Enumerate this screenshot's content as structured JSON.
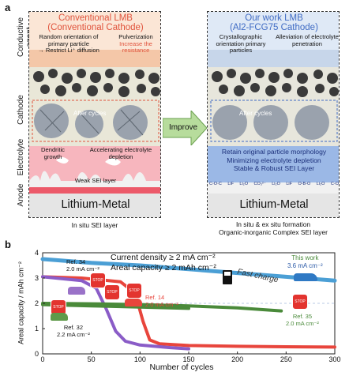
{
  "panel_a": {
    "letter": "a",
    "side_labels": [
      "Conductive agent",
      "Cathode",
      "Electrolyte",
      "Anode"
    ],
    "left": {
      "title_line1": "Conventional LMB",
      "title_line2": "(Conventional Cathode)",
      "note_left": "Random orientation of primary particle",
      "note_left_arrow": "→ Restrict Li⁺ diffusion",
      "note_right_line1": "Pulverization",
      "note_right_line2": "Increase the resistance",
      "after_cycles": "After cycles",
      "dendritic": "Dendritic growth",
      "accelerating": "Accelerating electrolyte depletion",
      "weak_sei": "Weak SEI layer",
      "lithium_metal": "Lithium-Metal",
      "caption": "In situ SEI layer"
    },
    "improve": "Improve",
    "right": {
      "title_line1": "Our work LMB",
      "title_line2": "(Al2-FCG75 Cathode)",
      "note_left": "Crystallographic orientation primary particles",
      "note_right": "Alleviation of electrolyte penetration",
      "after_cycles": "After cycles",
      "retain": "Retain original particle morphology",
      "minimizing": "Minimizing electrolyte depletion",
      "stable": "Stable & Robust SEI Layer",
      "sei_labels": [
        "C-O-C",
        "LiF",
        "Li₂O",
        "CO₃²⁻",
        "Li₂O",
        "LiF",
        "O-B-O",
        "Li₂O",
        "C-O"
      ],
      "lithium_metal": "Lithium-Metal",
      "caption_line1": "In situ & ex situ formation",
      "caption_line2": "Organic-inorganic Complex SEI layer"
    }
  },
  "panel_b": {
    "letter": "b",
    "annotation_line1": "Current density ≥ 2 mA cm⁻²",
    "annotation_line2": "Areal capacity ≥ 2 mAh cm⁻²",
    "fast_charge": "Fast charge",
    "stop": "STOP",
    "refs": [
      {
        "name": "Ref. 34",
        "density": "2.0 mA cm⁻²"
      },
      {
        "name": "Ref. 14",
        "density": "2.0 mA cm⁻²"
      },
      {
        "name": "Ref. 32",
        "density": "2.2 mA cm⁻²"
      },
      {
        "name": "Ref. 35",
        "density": "2.0 mA cm⁻²"
      },
      {
        "name": "This work",
        "density": "3.6 mA cm⁻²"
      }
    ]
  },
  "chart_data": {
    "type": "line",
    "xlabel": "Number of cycles",
    "ylabel": "Areal capacity / mAh cm⁻²",
    "xlim": [
      0,
      300
    ],
    "ylim": [
      0,
      4
    ],
    "xticks": [
      0,
      50,
      100,
      150,
      200,
      250,
      300
    ],
    "yticks": [
      0,
      1,
      2,
      3,
      4
    ],
    "grid": false,
    "series": [
      {
        "name": "This work",
        "color": "#4b9fd5",
        "x": [
          0,
          50,
          100,
          150,
          200,
          250,
          300
        ],
        "y": [
          3.75,
          3.6,
          3.5,
          3.35,
          3.2,
          3.05,
          2.9
        ]
      },
      {
        "name": "Ref. 14",
        "color": "#e8453c",
        "x": [
          0,
          40,
          80,
          95,
          103,
          110,
          120,
          150,
          200,
          250,
          300
        ],
        "y": [
          3.05,
          3.0,
          2.85,
          2.4,
          1.3,
          0.55,
          0.4,
          0.33,
          0.3,
          0.28,
          0.27
        ]
      },
      {
        "name": "Ref. 34",
        "color": "#8a5cc7",
        "x": [
          0,
          40,
          55,
          65,
          75,
          85,
          100,
          130,
          150
        ],
        "y": [
          3.05,
          2.9,
          2.6,
          1.8,
          0.9,
          0.5,
          0.35,
          0.25,
          0.2
        ]
      },
      {
        "name": "Ref. 32",
        "color": "#4a8a3a",
        "x": [
          0,
          50,
          100,
          150
        ],
        "y": [
          1.95,
          1.9,
          1.85,
          1.8
        ]
      },
      {
        "name": "Ref. 35",
        "color": "#4a8a3a",
        "x": [
          0,
          50,
          100,
          150,
          200,
          245
        ],
        "y": [
          2.0,
          1.98,
          1.95,
          1.9,
          1.82,
          1.7
        ]
      }
    ]
  }
}
